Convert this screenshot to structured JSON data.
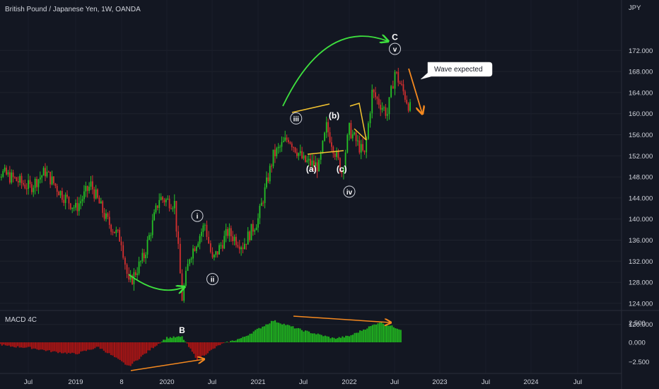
{
  "header": {
    "symbol": "British Pound / Japanese Yen, 1W, OANDA"
  },
  "axis": {
    "currency": "JPY"
  },
  "macd": {
    "label": "MACD 4C"
  },
  "callout": {
    "text": "Wave expected"
  },
  "colors": {
    "background": "#131722",
    "up": "#26c026",
    "down": "#d32f2f",
    "macd_pos": "#1faa1f",
    "macd_neg": "#a31515",
    "wave_arrow": "#3ee03e",
    "forecast_arrow": "#f5891f",
    "trendline": "#f4c430",
    "divergence": "#f5891f"
  },
  "chart_data": [
    {
      "type": "candlestick",
      "title": "British Pound / Japanese Yen, 1W, OANDA",
      "ylabel": "JPY",
      "ylim": [
        118.6,
        177.0
      ],
      "yticks": [
        "120.000",
        "124.000",
        "128.000",
        "132.000",
        "136.000",
        "140.000",
        "144.000",
        "148.000",
        "152.000",
        "156.000",
        "160.000",
        "164.000",
        "168.000",
        "172.000"
      ],
      "xticks": [
        "Jul",
        "2019",
        "8",
        "2020",
        "Jul",
        "2021",
        "Jul",
        "2022",
        "Jul",
        "2023",
        "Jul",
        "2024",
        "Jul"
      ],
      "xrange": [
        "2018-01",
        "2024-12"
      ],
      "path_points": [
        {
          "date": "2018-01",
          "price": 151
        },
        {
          "date": "2018-03",
          "price": 149
        },
        {
          "date": "2018-05",
          "price": 147.5
        },
        {
          "date": "2018-07",
          "price": 146
        },
        {
          "date": "2018-09",
          "price": 149
        },
        {
          "date": "2018-11",
          "price": 145
        },
        {
          "date": "2019-01",
          "price": 142
        },
        {
          "date": "2019-03",
          "price": 146.5
        },
        {
          "date": "2019-05",
          "price": 140
        },
        {
          "date": "2019-07",
          "price": 136
        },
        {
          "date": "2019-08",
          "price": 127.5
        },
        {
          "date": "2019-10",
          "price": 133
        },
        {
          "date": "2019-12",
          "price": 144
        },
        {
          "date": "2020-02",
          "price": 143
        },
        {
          "date": "2020-03",
          "price": 125
        },
        {
          "date": "2020-04",
          "price": 133
        },
        {
          "date": "2020-06",
          "price": 139
        },
        {
          "date": "2020-07",
          "price": 132
        },
        {
          "date": "2020-09",
          "price": 137.5
        },
        {
          "date": "2020-11",
          "price": 135
        },
        {
          "date": "2021-01",
          "price": 140
        },
        {
          "date": "2021-03",
          "price": 152
        },
        {
          "date": "2021-05",
          "price": 155.5
        },
        {
          "date": "2021-07",
          "price": 151
        },
        {
          "date": "2021-09",
          "price": 150
        },
        {
          "date": "2021-10",
          "price": 157.5
        },
        {
          "date": "2021-12",
          "price": 149
        },
        {
          "date": "2022-01",
          "price": 157
        },
        {
          "date": "2022-03",
          "price": 152
        },
        {
          "date": "2022-04",
          "price": 164
        },
        {
          "date": "2022-06",
          "price": 160
        },
        {
          "date": "2022-07",
          "price": 168
        },
        {
          "date": "2022-09",
          "price": 161
        }
      ],
      "annotations": [
        {
          "label": "i",
          "date": "2020-05",
          "price": 140.6
        },
        {
          "label": "ii",
          "date": "2020-07",
          "price": 128.6
        },
        {
          "label": "iii",
          "date": "2021-06",
          "price": 159.1
        },
        {
          "label": "(b)",
          "date": "2021-11",
          "price": 159.6
        },
        {
          "label": "(a)",
          "date": "2021-08",
          "price": 149.5
        },
        {
          "label": "(c)",
          "date": "2021-12",
          "price": 149.5
        },
        {
          "label": "iv",
          "date": "2022-01",
          "price": 145.2
        },
        {
          "label": "v",
          "date": "2022-07",
          "price": 172.3
        },
        {
          "label": "C",
          "date": "2022-07",
          "price": 174.5
        },
        {
          "label": "B",
          "date": "2020-03",
          "price": 118.9
        }
      ]
    },
    {
      "type": "bar",
      "title": "MACD 4C",
      "ylim": [
        -3.2,
        3.2
      ],
      "yticks": [
        "2.500",
        "0.000",
        "−2.500"
      ],
      "histogram_points": [
        {
          "date": "2018-01",
          "value": 0.3
        },
        {
          "date": "2018-04",
          "value": -0.5
        },
        {
          "date": "2018-07",
          "value": -0.7
        },
        {
          "date": "2018-10",
          "value": -1.2
        },
        {
          "date": "2019-01",
          "value": -1.5
        },
        {
          "date": "2019-04",
          "value": -0.6
        },
        {
          "date": "2019-08",
          "value": -3.1
        },
        {
          "date": "2019-11",
          "value": -0.8
        },
        {
          "date": "2020-01",
          "value": 0.6
        },
        {
          "date": "2020-03",
          "value": 0.7
        },
        {
          "date": "2020-05",
          "value": -2.2
        },
        {
          "date": "2020-08",
          "value": -0.3
        },
        {
          "date": "2020-11",
          "value": 0.6
        },
        {
          "date": "2021-03",
          "value": 2.8
        },
        {
          "date": "2021-07",
          "value": 1.5
        },
        {
          "date": "2021-11",
          "value": 0.5
        },
        {
          "date": "2022-01",
          "value": 0.8
        },
        {
          "date": "2022-05",
          "value": 2.6
        },
        {
          "date": "2022-08",
          "value": 1.6
        }
      ]
    }
  ]
}
